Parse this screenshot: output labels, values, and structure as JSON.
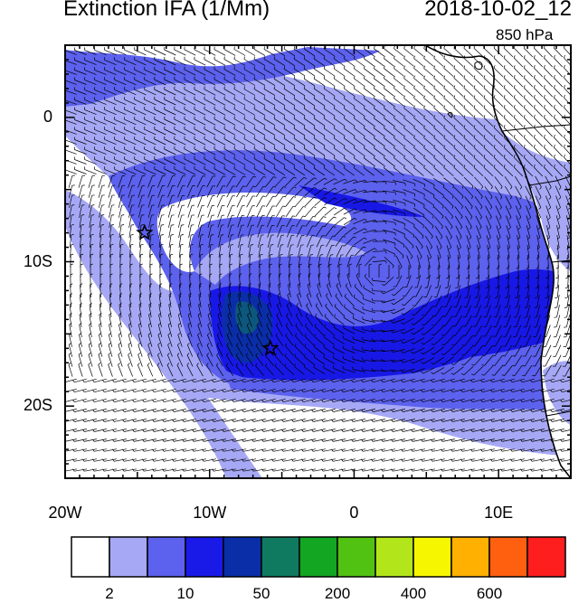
{
  "title": "Extinction IFA (1/Mm)",
  "datetime": "2018-10-02_12",
  "level": "850 hPa",
  "map": {
    "lon_range": [
      -20,
      15
    ],
    "lat_range": [
      -25,
      5
    ],
    "lat_ticks": [
      {
        "value": 0,
        "label": "0"
      },
      {
        "value": -10,
        "label": "10S"
      },
      {
        "value": -20,
        "label": "20S"
      }
    ],
    "lon_ticks": [
      {
        "value": -20,
        "label": "20W"
      },
      {
        "value": -10,
        "label": "10W"
      },
      {
        "value": 0,
        "label": "0"
      },
      {
        "value": 10,
        "label": "10E"
      }
    ],
    "markers": [
      {
        "name": "star",
        "lon": -14.5,
        "lat": -8.0
      },
      {
        "name": "star",
        "lon": -5.8,
        "lat": -16.0
      }
    ],
    "field_colors": {
      "lt2": "#ffffff",
      "2_5": "#a6a8f6",
      "5_10": "#5c61ee",
      "10_20": "#1818e6",
      "20_50": "#0a2ea8",
      "50_100": "#0e7a5a"
    }
  },
  "colorbar": {
    "colors": [
      "#ffffff",
      "#a6a8f6",
      "#5c61ee",
      "#1a1ae8",
      "#0a2ea8",
      "#0f7a60",
      "#12a622",
      "#52c212",
      "#b2e61a",
      "#f6f600",
      "#ffb000",
      "#ff6010",
      "#ff1e1e"
    ],
    "labels": [
      {
        "value": "2",
        "after_box": 1
      },
      {
        "value": "10",
        "after_box": 3
      },
      {
        "value": "50",
        "after_box": 5
      },
      {
        "value": "200",
        "after_box": 7
      },
      {
        "value": "400",
        "after_box": 9
      },
      {
        "value": "600",
        "after_box": 11
      }
    ]
  }
}
